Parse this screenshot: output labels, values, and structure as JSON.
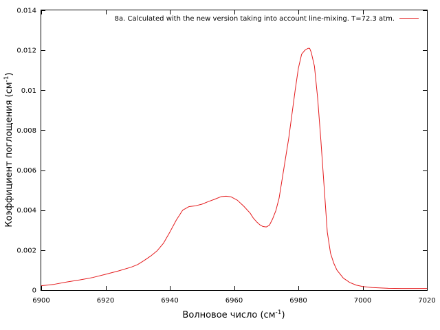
{
  "chart_data": {
    "type": "line",
    "xlabel_main": "Волновое число (см",
    "xlabel_sup": "-1",
    "xlabel_end": ")",
    "ylabel_main": "Коэффициент поглощения (см",
    "ylabel_sup": "-1",
    "ylabel_end": ")",
    "xlim": [
      6900,
      7020
    ],
    "ylim": [
      0,
      0.014
    ],
    "x_ticks": [
      6900,
      6920,
      6940,
      6960,
      6980,
      7000,
      7020
    ],
    "y_ticks": [
      0,
      0.002,
      0.004,
      0.006,
      0.008,
      0.01,
      0.012,
      0.014
    ],
    "y_tick_labels": [
      "0",
      "0.002",
      "0.004",
      "0.006",
      "0.008",
      "0.01",
      "0.012",
      "0.014"
    ],
    "grid": false,
    "legend_position": "top-right",
    "series": [
      {
        "name": "8a. Calculated with the new  version taking into account line-mixing. T=72.3 atm.",
        "color": "#e41a1c",
        "points": [
          [
            6900,
            0.00022
          ],
          [
            6904,
            0.00029
          ],
          [
            6908,
            0.00041
          ],
          [
            6912,
            0.00051
          ],
          [
            6916,
            0.00063
          ],
          [
            6920,
            0.00079
          ],
          [
            6924,
            0.00096
          ],
          [
            6928,
            0.00115
          ],
          [
            6930,
            0.00128
          ],
          [
            6932,
            0.00148
          ],
          [
            6934,
            0.0017
          ],
          [
            6936,
            0.00196
          ],
          [
            6938,
            0.00234
          ],
          [
            6940,
            0.0029
          ],
          [
            6942,
            0.0035
          ],
          [
            6944,
            0.004
          ],
          [
            6946,
            0.00418
          ],
          [
            6948,
            0.00422
          ],
          [
            6950,
            0.0043
          ],
          [
            6952,
            0.00443
          ],
          [
            6954,
            0.00455
          ],
          [
            6956,
            0.00468
          ],
          [
            6957.5,
            0.0047
          ],
          [
            6959,
            0.00467
          ],
          [
            6961,
            0.0045
          ],
          [
            6963,
            0.0042
          ],
          [
            6965,
            0.00385
          ],
          [
            6966,
            0.0036
          ],
          [
            6967,
            0.00342
          ],
          [
            6968,
            0.00327
          ],
          [
            6969,
            0.00318
          ],
          [
            6970,
            0.00316
          ],
          [
            6971,
            0.00325
          ],
          [
            6972,
            0.00357
          ],
          [
            6973,
            0.00398
          ],
          [
            6974,
            0.0046
          ],
          [
            6975,
            0.0056
          ],
          [
            6976,
            0.0066
          ],
          [
            6977,
            0.0076
          ],
          [
            6978,
            0.0088
          ],
          [
            6979,
            0.01
          ],
          [
            6980,
            0.0111
          ],
          [
            6981,
            0.0118
          ],
          [
            6982,
            0.012
          ],
          [
            6983,
            0.0121
          ],
          [
            6983.5,
            0.0121
          ],
          [
            6984,
            0.0119
          ],
          [
            6985,
            0.0112
          ],
          [
            6986,
            0.0096
          ],
          [
            6987,
            0.0075
          ],
          [
            6988,
            0.0052
          ],
          [
            6989,
            0.0029
          ],
          [
            6990,
            0.00185
          ],
          [
            6991,
            0.00135
          ],
          [
            6992,
            0.001
          ],
          [
            6994,
            0.0006
          ],
          [
            6996,
            0.00038
          ],
          [
            6998,
            0.00025
          ],
          [
            7000,
            0.00018
          ],
          [
            7003,
            0.00013
          ],
          [
            7008,
            9e-05
          ],
          [
            7012,
            8e-05
          ],
          [
            7016,
            8e-05
          ],
          [
            7020,
            8e-05
          ]
        ]
      }
    ]
  }
}
